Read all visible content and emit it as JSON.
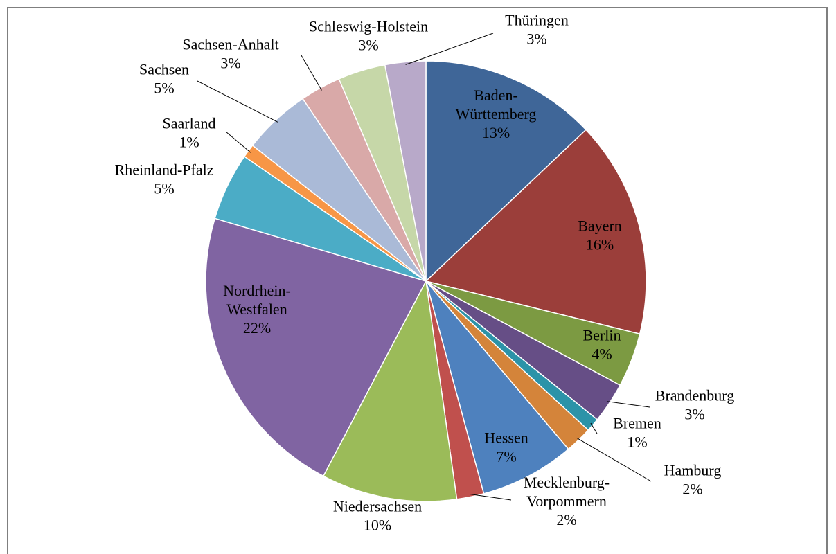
{
  "chart_data": {
    "type": "pie",
    "title": "",
    "start_angle_deg": 0,
    "direction": "clockwise",
    "slices": [
      {
        "label_lines": [
          "Baden-",
          "Württemberg"
        ],
        "label": "Baden-Württemberg",
        "value": 13,
        "display": "13%",
        "color": "#3F6698",
        "label_inside": true
      },
      {
        "label_lines": [
          "Bayern"
        ],
        "label": "Bayern",
        "value": 16,
        "display": "16%",
        "color": "#9B3E3A",
        "label_inside": true
      },
      {
        "label_lines": [
          "Berlin"
        ],
        "label": "Berlin",
        "value": 4,
        "display": "4%",
        "color": "#7C9A42",
        "label_inside": true
      },
      {
        "label_lines": [
          "Brandenburg"
        ],
        "label": "Brandenburg",
        "value": 3,
        "display": "3%",
        "color": "#664E86",
        "label_inside": false
      },
      {
        "label_lines": [
          "Bremen"
        ],
        "label": "Bremen",
        "value": 1,
        "display": "1%",
        "color": "#2C93A8",
        "label_inside": false
      },
      {
        "label_lines": [
          "Hamburg"
        ],
        "label": "Hamburg",
        "value": 2,
        "display": "2%",
        "color": "#D4843A",
        "label_inside": false
      },
      {
        "label_lines": [
          "Hessen"
        ],
        "label": "Hessen",
        "value": 7,
        "display": "7%",
        "color": "#4E81BE",
        "label_inside": true
      },
      {
        "label_lines": [
          "Mecklenburg-",
          "Vorpommern"
        ],
        "label": "Mecklenburg-Vorpommern",
        "value": 2,
        "display": "2%",
        "color": "#C0504D",
        "label_inside": false
      },
      {
        "label_lines": [
          "Niedersachsen"
        ],
        "label": "Niedersachsen",
        "value": 10,
        "display": "10%",
        "color": "#9BBB59",
        "label_inside": false
      },
      {
        "label_lines": [
          "Nordrhein-",
          "Westfalen"
        ],
        "label": "Nordrhein-Westfalen",
        "value": 22,
        "display": "22%",
        "color": "#8064A2",
        "label_inside": true
      },
      {
        "label_lines": [
          "Rheinland-Pfalz"
        ],
        "label": "Rheinland-Pfalz",
        "value": 5,
        "display": "5%",
        "color": "#4BACC6",
        "label_inside": false
      },
      {
        "label_lines": [
          "Saarland"
        ],
        "label": "Saarland",
        "value": 1,
        "display": "1%",
        "color": "#F79646",
        "label_inside": false
      },
      {
        "label_lines": [
          "Sachsen"
        ],
        "label": "Sachsen",
        "value": 5,
        "display": "5%",
        "color": "#AABAD7",
        "label_inside": false
      },
      {
        "label_lines": [
          "Sachsen-Anhalt"
        ],
        "label": "Sachsen-Anhalt",
        "value": 3,
        "display": "3%",
        "color": "#D9A9A8",
        "label_inside": false
      },
      {
        "label_lines": [
          "Schleswig-Holstein"
        ],
        "label": "Schleswig-Holstein",
        "value": 3.5,
        "display": "3%",
        "color": "#C6D7A8",
        "label_inside": false
      },
      {
        "label_lines": [
          "Thüringen"
        ],
        "label": "Thüringen",
        "value": 3,
        "display": "3%",
        "color": "#B8A9C9",
        "label_inside": false
      }
    ]
  }
}
